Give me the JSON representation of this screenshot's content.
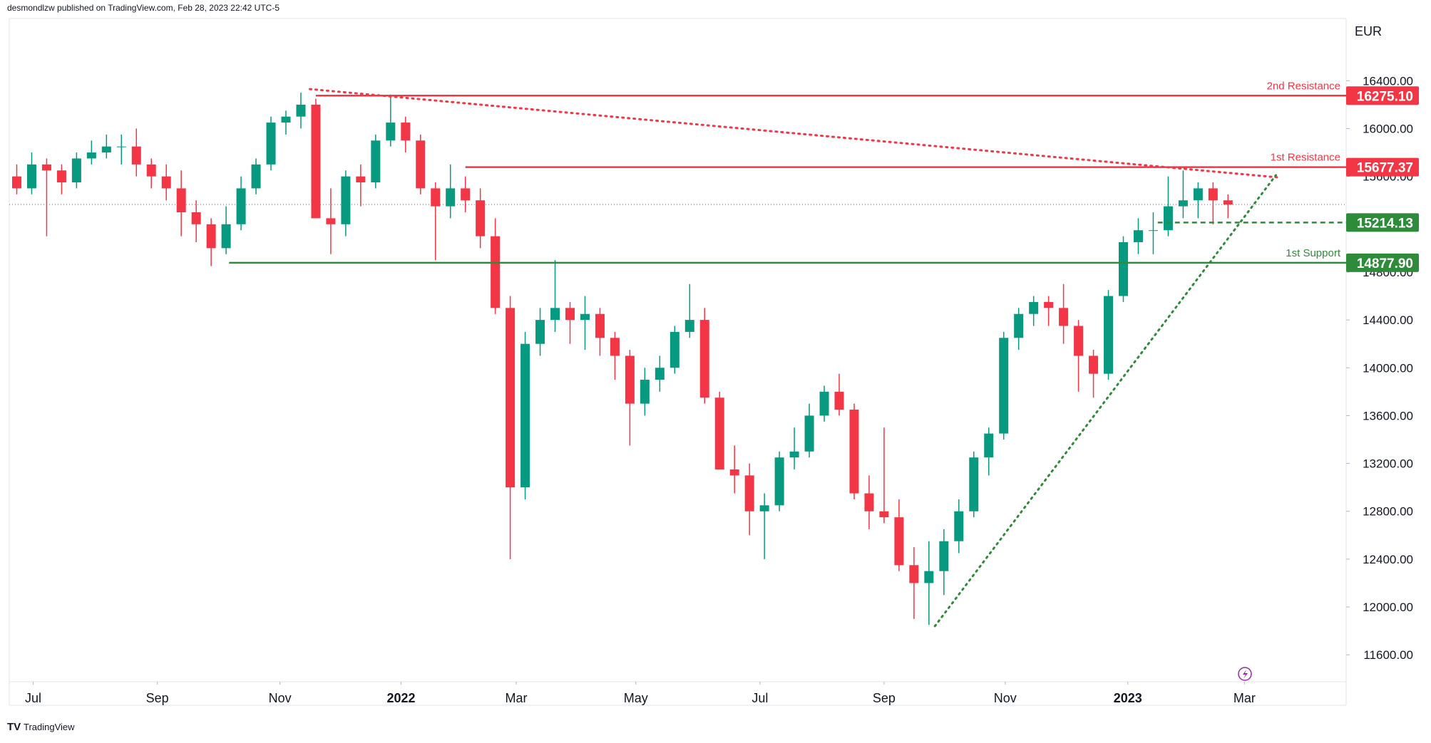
{
  "header": "desmondlzw published on TradingView.com, Feb 28, 2023 22:42 UTC-5",
  "footer": "TradingView",
  "chart_data": {
    "type": "candlestick",
    "y_axis_label": "EUR",
    "up_color": "#089981",
    "down_color": "#f23645",
    "xlim": [
      -0.5,
      88.9
    ],
    "ylim": [
      11375,
      16920
    ],
    "xticks": [
      {
        "value": 1.1,
        "label": "Jul"
      },
      {
        "value": 9.4,
        "label": "Sep"
      },
      {
        "value": 17.6,
        "label": "Nov"
      },
      {
        "value": 25.7,
        "label": "2022"
      },
      {
        "value": 33.4,
        "label": "Mar"
      },
      {
        "value": 41.4,
        "label": "May"
      },
      {
        "value": 49.7,
        "label": "Jul"
      },
      {
        "value": 58.0,
        "label": "Sep"
      },
      {
        "value": 66.1,
        "label": "Nov"
      },
      {
        "value": 74.3,
        "label": "2023"
      },
      {
        "value": 82.1,
        "label": "Mar"
      }
    ],
    "yticks": [
      {
        "value": 11600,
        "label": "11600.00"
      },
      {
        "value": 12000,
        "label": "12000.00"
      },
      {
        "value": 12400,
        "label": "12400.00"
      },
      {
        "value": 12800,
        "label": "12800.00"
      },
      {
        "value": 13200,
        "label": "13200.00"
      },
      {
        "value": 13600,
        "label": "13600.00"
      },
      {
        "value": 14000,
        "label": "14000.00"
      },
      {
        "value": 14400,
        "label": "14400.00"
      },
      {
        "value": 14800,
        "label": "14800.00"
      },
      {
        "value": 15200,
        "label": "15200.00"
      },
      {
        "value": 15600,
        "label": "15600.00"
      },
      {
        "value": 16000,
        "label": "16000.00"
      },
      {
        "value": 16400,
        "label": "16400.00"
      }
    ],
    "candles": [
      [
        15600,
        15700,
        15450,
        15500
      ],
      [
        15500,
        15800,
        15450,
        15700
      ],
      [
        15700,
        15750,
        15100,
        15650
      ],
      [
        15650,
        15700,
        15450,
        15550
      ],
      [
        15550,
        15800,
        15500,
        15750
      ],
      [
        15750,
        15900,
        15700,
        15800
      ],
      [
        15800,
        15950,
        15750,
        15850
      ],
      [
        15850,
        15950,
        15700,
        15850
      ],
      [
        15850,
        16000,
        15600,
        15700
      ],
      [
        15700,
        15750,
        15500,
        15600
      ],
      [
        15600,
        15700,
        15400,
        15500
      ],
      [
        15500,
        15650,
        15100,
        15300
      ],
      [
        15300,
        15400,
        15050,
        15200
      ],
      [
        15200,
        15250,
        14850,
        15000
      ],
      [
        15000,
        15350,
        14950,
        15200
      ],
      [
        15200,
        15600,
        15150,
        15500
      ],
      [
        15500,
        15750,
        15450,
        15700
      ],
      [
        15700,
        16100,
        15650,
        16050
      ],
      [
        16050,
        16150,
        15950,
        16100
      ],
      [
        16100,
        16300,
        16000,
        16200
      ],
      [
        16200,
        16250,
        15300,
        15250
      ],
      [
        15250,
        15500,
        14950,
        15200
      ],
      [
        15200,
        15650,
        15100,
        15600
      ],
      [
        15600,
        15700,
        15350,
        15550
      ],
      [
        15550,
        15950,
        15500,
        15900
      ],
      [
        15900,
        16285,
        15850,
        16050
      ],
      [
        16050,
        16100,
        15800,
        15900
      ],
      [
        15900,
        15950,
        15450,
        15500
      ],
      [
        15500,
        15550,
        14900,
        15350
      ],
      [
        15350,
        15700,
        15250,
        15500
      ],
      [
        15500,
        15600,
        15300,
        15400
      ],
      [
        15400,
        15500,
        15000,
        15100
      ],
      [
        15100,
        15250,
        14450,
        14500
      ],
      [
        14500,
        14600,
        12400,
        13000
      ],
      [
        13000,
        14300,
        12900,
        14200
      ],
      [
        14200,
        14500,
        14100,
        14400
      ],
      [
        14400,
        14900,
        14300,
        14500
      ],
      [
        14500,
        14550,
        14200,
        14400
      ],
      [
        14400,
        14600,
        14150,
        14450
      ],
      [
        14450,
        14500,
        14100,
        14250
      ],
      [
        14250,
        14300,
        13900,
        14100
      ],
      [
        14100,
        14150,
        13350,
        13700
      ],
      [
        13700,
        14000,
        13600,
        13900
      ],
      [
        13900,
        14100,
        13800,
        14000
      ],
      [
        14000,
        14350,
        13950,
        14300
      ],
      [
        14300,
        14700,
        14250,
        14400
      ],
      [
        14400,
        14500,
        13700,
        13750
      ],
      [
        13750,
        13800,
        13150,
        13150
      ],
      [
        13150,
        13350,
        12950,
        13100
      ],
      [
        13100,
        13200,
        12600,
        12800
      ],
      [
        12800,
        12950,
        12400,
        12850
      ],
      [
        12850,
        13300,
        12800,
        13250
      ],
      [
        13250,
        13500,
        13150,
        13300
      ],
      [
        13300,
        13700,
        13250,
        13600
      ],
      [
        13600,
        13850,
        13550,
        13800
      ],
      [
        13800,
        13950,
        13600,
        13650
      ],
      [
        13650,
        13700,
        12900,
        12950
      ],
      [
        12950,
        13100,
        12650,
        12800
      ],
      [
        12800,
        13500,
        12700,
        12750
      ],
      [
        12750,
        12900,
        12300,
        12350
      ],
      [
        12350,
        12500,
        11900,
        12200
      ],
      [
        12200,
        12550,
        11850,
        12300
      ],
      [
        12300,
        12650,
        12100,
        12550
      ],
      [
        12550,
        12900,
        12450,
        12800
      ],
      [
        12800,
        13300,
        12750,
        13250
      ],
      [
        13250,
        13500,
        13100,
        13450
      ],
      [
        13450,
        14300,
        13400,
        14250
      ],
      [
        14250,
        14500,
        14150,
        14450
      ],
      [
        14450,
        14600,
        14350,
        14550
      ],
      [
        14550,
        14600,
        14350,
        14500
      ],
      [
        14500,
        14700,
        14200,
        14350
      ],
      [
        14350,
        14400,
        13800,
        14100
      ],
      [
        14100,
        14150,
        13750,
        13950
      ],
      [
        13950,
        14650,
        13900,
        14600
      ],
      [
        14600,
        15100,
        14550,
        15050
      ],
      [
        15050,
        15250,
        14950,
        15150
      ],
      [
        15150,
        15300,
        14950,
        15150
      ],
      [
        15150,
        15600,
        15100,
        15350
      ],
      [
        15350,
        15650,
        15250,
        15400
      ],
      [
        15400,
        15550,
        15250,
        15500
      ],
      [
        15500,
        15550,
        15200,
        15400
      ],
      [
        15400,
        15450,
        15250,
        15365
      ]
    ],
    "levels": [
      {
        "name": "2nd Resistance",
        "value": 16275.1,
        "label": "16275.10",
        "color": "#f23645",
        "from": 20,
        "dashed": false
      },
      {
        "name": "1st Resistance",
        "value": 15677.37,
        "label": "15677.37",
        "color": "#f23645",
        "from": 30,
        "dashed": false
      },
      {
        "value": 15214.13,
        "label": "15214.13",
        "color": "#2e8b3a",
        "from": 76.3,
        "dashed": true
      },
      {
        "name": "1st Support",
        "value": 14877.9,
        "label": "14877.90",
        "color": "#2e8b3a",
        "from": 14.2,
        "dashed": false
      }
    ],
    "trendlines": [
      {
        "color": "#f23645",
        "x": [
          19.6,
          84.5
        ],
        "y": [
          16330,
          15590
        ]
      },
      {
        "color": "#2e8b3a",
        "x": [
          61.4,
          84.2
        ],
        "y": [
          11840,
          15610
        ]
      }
    ]
  }
}
